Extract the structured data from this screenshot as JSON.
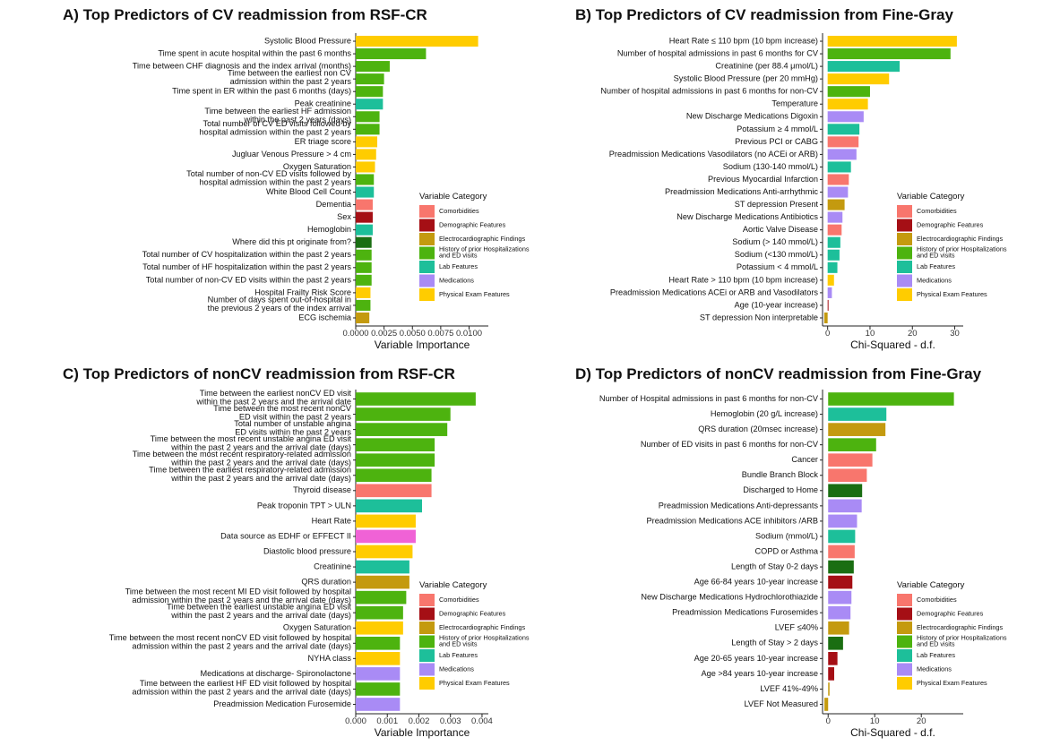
{
  "colors": {
    "Comorbidities": "#F8766D",
    "Demographic Features": "#A50F15",
    "Electrocardiographic Findings": "#C49A0F",
    "History of prior Hospitalizations and ED visits": "#4DB30F",
    "Lab Features": "#1DBF9A",
    "Medications": "#A98BF5",
    "Physical Exam Features": "#FFCC00",
    "Data Source": "#F062D6",
    "Discharge": "#1A6E12"
  },
  "legend": {
    "title": "Variable Category",
    "items": [
      {
        "label": "Comorbidities",
        "color": "#F8766D"
      },
      {
        "label": "Demographic Features",
        "color": "#A50F15"
      },
      {
        "label": "Electrocardiographic Findings",
        "color": "#C49A0F"
      },
      {
        "label": "History of prior Hospitalizations and ED visits",
        "color": "#4DB30F"
      },
      {
        "label": "Lab Features",
        "color": "#1DBF9A"
      },
      {
        "label": "Medications",
        "color": "#A98BF5"
      },
      {
        "label": "Physical Exam Features",
        "color": "#FFCC00"
      }
    ]
  },
  "chart_data": [
    {
      "panel": "A",
      "type": "bar",
      "orientation": "horizontal",
      "title": "A) Top Predictors of CV readmission from RSF-CR",
      "xlabel": "Variable Importance",
      "xlim": [
        0,
        0.0117
      ],
      "ticks": [
        0,
        0.0025,
        0.005,
        0.0075,
        0.01
      ],
      "tick_labels": [
        "0.0000",
        "0.0025",
        "0.0050",
        "0.0075",
        "0.0100"
      ],
      "legend_position": "right",
      "bars": [
        {
          "label": "Systolic Blood Pressure",
          "value": 0.0108,
          "cat": "Physical Exam Features"
        },
        {
          "label": "Time spent in acute hospital within the past 6 months",
          "value": 0.0062,
          "cat": "History of prior Hospitalizations and ED visits"
        },
        {
          "label": "Time between CHF diagnosis and the index arrival (months)",
          "value": 0.003,
          "cat": "History of prior Hospitalizations and ED visits"
        },
        {
          "label": "Time between the earliest non CV admission within the past 2 years",
          "value": 0.0025,
          "cat": "History of prior Hospitalizations and ED visits"
        },
        {
          "label": "Time spent in ER within the past 6 months (days)",
          "value": 0.0024,
          "cat": "History of prior Hospitalizations and ED visits"
        },
        {
          "label": "Peak creatinine",
          "value": 0.0024,
          "cat": "Lab Features"
        },
        {
          "label": "Time between the earliest HF admission within the past 2 years (days)",
          "value": 0.0021,
          "cat": "History of prior Hospitalizations and ED visits"
        },
        {
          "label": "Total number of CV ED visits followed by hospital admission within the past 2 years",
          "value": 0.0021,
          "cat": "History of prior Hospitalizations and ED visits"
        },
        {
          "label": "ER triage score",
          "value": 0.0019,
          "cat": "Physical Exam Features"
        },
        {
          "label": "Jugluar Venous Pressure > 4 cm",
          "value": 0.0018,
          "cat": "Physical Exam Features"
        },
        {
          "label": "Oxygen Saturation",
          "value": 0.0017,
          "cat": "Physical Exam Features"
        },
        {
          "label": "Total number of non-CV ED visits followed by hospital admission within the past 2 years",
          "value": 0.0016,
          "cat": "History of prior Hospitalizations and ED visits"
        },
        {
          "label": "White Blood Cell Count",
          "value": 0.0016,
          "cat": "Lab Features"
        },
        {
          "label": "Dementia",
          "value": 0.0015,
          "cat": "Comorbidities"
        },
        {
          "label": "Sex",
          "value": 0.0015,
          "cat": "Demographic Features"
        },
        {
          "label": "Hemoglobin",
          "value": 0.0015,
          "cat": "Lab Features"
        },
        {
          "label": "Where did this pt originate from?",
          "value": 0.0014,
          "cat": "Discharge"
        },
        {
          "label": "Total number of CV hospitalization within the past 2 years",
          "value": 0.0014,
          "cat": "History of prior Hospitalizations and ED visits"
        },
        {
          "label": "Total number of HF hospitalization within the past 2 years",
          "value": 0.0014,
          "cat": "History of prior Hospitalizations and ED visits"
        },
        {
          "label": "Total number of non-CV ED visits within the past 2 years",
          "value": 0.0014,
          "cat": "History of prior Hospitalizations and ED visits"
        },
        {
          "label": "Hospital Frailty Risk Score",
          "value": 0.0013,
          "cat": "Physical Exam Features"
        },
        {
          "label": "Number of days spent out-of-hospital in the previous 2 years of the index arrival",
          "value": 0.0013,
          "cat": "History of prior Hospitalizations and ED visits"
        },
        {
          "label": "ECG ischemia",
          "value": 0.0012,
          "cat": "Electrocardiographic Findings"
        }
      ]
    },
    {
      "panel": "B",
      "type": "bar",
      "orientation": "horizontal",
      "title": "B) Top Predictors of CV readmission from Fine-Gray",
      "xlabel": "Chi-Squared - d.f.",
      "xlim": [
        -1.2,
        32
      ],
      "ticks": [
        0,
        10,
        20,
        30
      ],
      "tick_labels": [
        "0",
        "10",
        "20",
        "30"
      ],
      "legend_position": "right",
      "bars": [
        {
          "label": "Heart Rate ≤ 110 bpm (10 bpm increase)",
          "value": 30.5,
          "cat": "Physical Exam Features"
        },
        {
          "label": "Number of hospital admissions in past 6 months for CV",
          "value": 29.0,
          "cat": "History of prior Hospitalizations and ED visits"
        },
        {
          "label": "Creatinine (per 88.4 μmol/L)",
          "value": 17.0,
          "cat": "Lab Features"
        },
        {
          "label": "Systolic Blood Pressure (per 20 mmHg)",
          "value": 14.5,
          "cat": "Physical Exam Features"
        },
        {
          "label": "Number of hospital admissions in past 6 months for non-CV",
          "value": 10.0,
          "cat": "History of prior Hospitalizations and ED visits"
        },
        {
          "label": "Temperature",
          "value": 9.5,
          "cat": "Physical Exam Features"
        },
        {
          "label": "New Discharge Medications Digoxin",
          "value": 8.5,
          "cat": "Medications"
        },
        {
          "label": "Potassium ≥ 4 mmol/L",
          "value": 7.5,
          "cat": "Lab Features"
        },
        {
          "label": "Previous PCI or CABG",
          "value": 7.3,
          "cat": "Comorbidities"
        },
        {
          "label": "Preadmission Medications Vasodilators (no ACEi or ARB)",
          "value": 6.8,
          "cat": "Medications"
        },
        {
          "label": "Sodium (130-140 mmol/L)",
          "value": 5.5,
          "cat": "Lab Features"
        },
        {
          "label": "Previous Myocardial Infarction",
          "value": 5.0,
          "cat": "Comorbidities"
        },
        {
          "label": "Preadmission Medications Anti-arrhythmic",
          "value": 4.8,
          "cat": "Medications"
        },
        {
          "label": "ST depression Present",
          "value": 4.0,
          "cat": "Electrocardiographic Findings"
        },
        {
          "label": "New Discharge Medications Antibiotics",
          "value": 3.5,
          "cat": "Medications"
        },
        {
          "label": "Aortic Valve Disease",
          "value": 3.3,
          "cat": "Comorbidities"
        },
        {
          "label": "Sodium (> 140 mmol/L)",
          "value": 3.0,
          "cat": "Lab Features"
        },
        {
          "label": "Sodium (<130 mmol/L)",
          "value": 2.8,
          "cat": "Lab Features"
        },
        {
          "label": "Potassium < 4 mmol/L",
          "value": 2.3,
          "cat": "Lab Features"
        },
        {
          "label": "Heart Rate > 110 bpm (10 bpm increase)",
          "value": 1.5,
          "cat": "Physical Exam Features"
        },
        {
          "label": "Preadmission Medications ACEi or ARB and Vasodilators",
          "value": 1.0,
          "cat": "Medications"
        },
        {
          "label": "Age (10-year increase)",
          "value": 0.2,
          "cat": "Demographic Features"
        },
        {
          "label": "ST depression Non interpretable",
          "value": -0.8,
          "cat": "Electrocardiographic Findings"
        }
      ]
    },
    {
      "panel": "C",
      "type": "bar",
      "orientation": "horizontal",
      "title": "C) Top Predictors of nonCV readmission from RSF-CR",
      "xlabel": "Variable Importance",
      "xlim": [
        0,
        0.0042
      ],
      "ticks": [
        0,
        0.001,
        0.002,
        0.003,
        0.004
      ],
      "tick_labels": [
        "0.000",
        "0.001",
        "0.002",
        "0.003",
        "0.004"
      ],
      "legend_position": "right",
      "bars": [
        {
          "label": "Time between the earliest nonCV ED visit within the past 2 years and the arrival date",
          "value": 0.0038,
          "cat": "History of prior Hospitalizations and ED visits"
        },
        {
          "label": "Time between the most recent nonCV ED visit within the past 2 years",
          "value": 0.003,
          "cat": "History of prior Hospitalizations and ED visits"
        },
        {
          "label": "Total number of unstable angina ED visits within the past 2 years",
          "value": 0.0029,
          "cat": "History of prior Hospitalizations and ED visits"
        },
        {
          "label": "Time between the most recent unstable angina ED visit within the past 2 years and the arrival date (days)",
          "value": 0.0025,
          "cat": "History of prior Hospitalizations and ED visits"
        },
        {
          "label": "Time between the most recent respiratory-related admission within the past 2 years and the arrival date (days)",
          "value": 0.0025,
          "cat": "History of prior Hospitalizations and ED visits"
        },
        {
          "label": "Time between the earliest respiratory-related admission within the past 2 years and the arrival date (days)",
          "value": 0.0024,
          "cat": "History of prior Hospitalizations and ED visits"
        },
        {
          "label": "Thyroid disease",
          "value": 0.0024,
          "cat": "Comorbidities"
        },
        {
          "label": "Peak troponin TPT > ULN",
          "value": 0.0021,
          "cat": "Lab Features"
        },
        {
          "label": "Heart Rate",
          "value": 0.0019,
          "cat": "Physical Exam Features"
        },
        {
          "label": "Data source as EDHF  or EFFECT II",
          "value": 0.0019,
          "cat": "Data Source"
        },
        {
          "label": "Diastolic blood pressure",
          "value": 0.0018,
          "cat": "Physical Exam Features"
        },
        {
          "label": "Creatinine",
          "value": 0.0017,
          "cat": "Lab Features"
        },
        {
          "label": "QRS duration",
          "value": 0.0017,
          "cat": "Electrocardiographic Findings"
        },
        {
          "label": "Time between the most recent MI ED visit followed by hospital admission within the past 2 years and the arrival date (days)",
          "value": 0.0016,
          "cat": "History of prior Hospitalizations and ED visits"
        },
        {
          "label": "Time between the earliest unstable angina ED visit within the past 2 years and the arrival date (days)",
          "value": 0.0015,
          "cat": "History of prior Hospitalizations and ED visits"
        },
        {
          "label": "Oxygen Saturation",
          "value": 0.0015,
          "cat": "Physical Exam Features"
        },
        {
          "label": "Time between the most recent nonCV ED visit followed by hospital admission within the past 2 years and the arrival date (days)",
          "value": 0.0014,
          "cat": "History of prior Hospitalizations and ED visits"
        },
        {
          "label": "NYHA class",
          "value": 0.0014,
          "cat": "Physical Exam Features"
        },
        {
          "label": "Medications at discharge- Spironolactone",
          "value": 0.0014,
          "cat": "Medications"
        },
        {
          "label": "Time between the earliest HF ED visit followed by hospital admission within the past 2 years and the arrival date (days)",
          "value": 0.0014,
          "cat": "History of prior Hospitalizations and ED visits"
        },
        {
          "label": "Preadmission Medication Furosemide",
          "value": 0.0014,
          "cat": "Medications"
        }
      ]
    },
    {
      "panel": "D",
      "type": "bar",
      "orientation": "horizontal",
      "title": "D) Top Predictors of nonCV readmission from Fine-Gray",
      "xlabel": "Chi-Squared - d.f.",
      "xlim": [
        -1.2,
        29
      ],
      "ticks": [
        0,
        10,
        20
      ],
      "tick_labels": [
        "0",
        "10",
        "20"
      ],
      "legend_position": "right",
      "bars": [
        {
          "label": "Number of Hospital admissions in past 6 months for non-CV",
          "value": 27.0,
          "cat": "History of prior Hospitalizations and ED visits"
        },
        {
          "label": "Hemoglobin (20 g/L increase)",
          "value": 12.5,
          "cat": "Lab Features"
        },
        {
          "label": "QRS duration  (20msec increase)",
          "value": 12.3,
          "cat": "Electrocardiographic Findings"
        },
        {
          "label": "Number of ED visits in past 6 months for non-CV",
          "value": 10.3,
          "cat": "History of prior Hospitalizations and ED visits"
        },
        {
          "label": "Cancer",
          "value": 9.5,
          "cat": "Comorbidities"
        },
        {
          "label": "Bundle Branch Block",
          "value": 8.3,
          "cat": "Comorbidities"
        },
        {
          "label": "Discharged to Home",
          "value": 7.3,
          "cat": "Discharge"
        },
        {
          "label": "Preadmission Medications Anti-depressants",
          "value": 7.2,
          "cat": "Medications"
        },
        {
          "label": "Preadmission Medications ACE inhibitors /ARB",
          "value": 6.2,
          "cat": "Medications"
        },
        {
          "label": "Sodium (mmol/L)",
          "value": 5.8,
          "cat": "Lab Features"
        },
        {
          "label": "COPD or Asthma",
          "value": 5.7,
          "cat": "Comorbidities"
        },
        {
          "label": "Length of Stay 0-2 days",
          "value": 5.5,
          "cat": "Discharge"
        },
        {
          "label": "Age 66-84 years 10-year increase",
          "value": 5.2,
          "cat": "Demographic Features"
        },
        {
          "label": "New Discharge Medications Hydrochlorothiazide",
          "value": 5.0,
          "cat": "Medications"
        },
        {
          "label": "Preadmission Medications Furosemides",
          "value": 4.8,
          "cat": "Medications"
        },
        {
          "label": "LVEF ≤40%",
          "value": 4.5,
          "cat": "Electrocardiographic Findings"
        },
        {
          "label": "Length of Stay > 2 days",
          "value": 3.2,
          "cat": "Discharge"
        },
        {
          "label": "Age 20-65 years 10-year increase",
          "value": 2.0,
          "cat": "Demographic Features"
        },
        {
          "label": "Age >84 years 10-year increase",
          "value": 1.3,
          "cat": "Demographic Features"
        },
        {
          "label": "LVEF  41%-49%",
          "value": 0.3,
          "cat": "Electrocardiographic Findings"
        },
        {
          "label": "LVEF Not Measured",
          "value": -0.8,
          "cat": "Electrocardiographic Findings"
        }
      ]
    }
  ]
}
